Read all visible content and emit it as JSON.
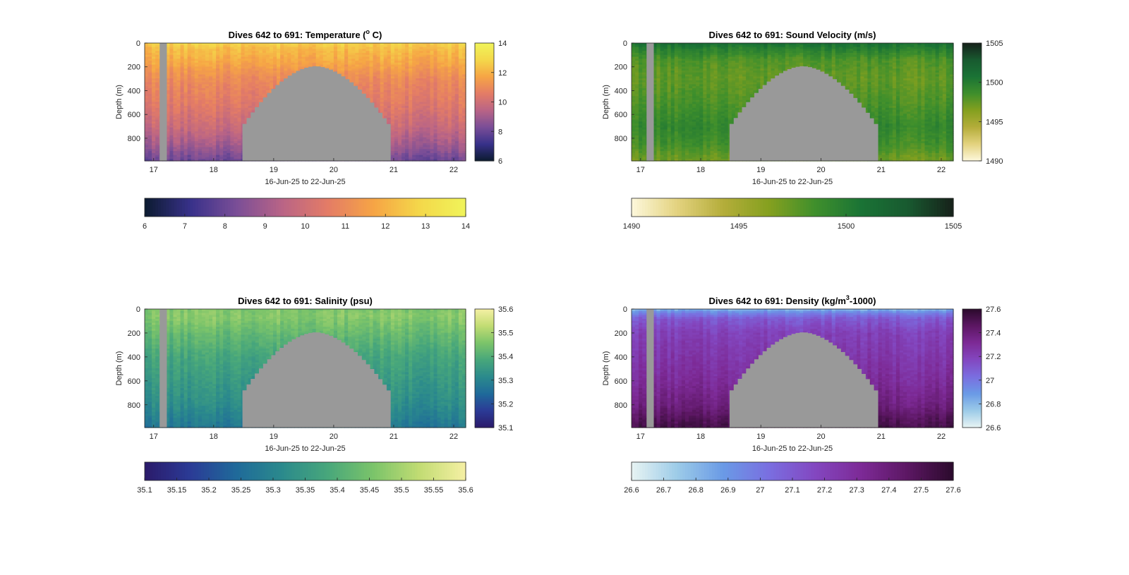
{
  "figure": {
    "title_prefix": "Dives 642 to 691",
    "dives": [
      642,
      691
    ],
    "xlabel": "16-Jun-25 to 22-Jun-25",
    "ylabel": "Depth (m)",
    "background": "#ffffff",
    "mask_color": "#999999"
  },
  "chart_data": [
    {
      "type": "heatmap",
      "id": "temperature",
      "title": "Dives 642 to 691: Temperature (",
      "title_sup": "o",
      "title_tail": " C)",
      "xlabel": "16-Jun-25 to 22-Jun-25",
      "ylabel": "Depth (m)",
      "x_ticks": [
        "17",
        "18",
        "19",
        "20",
        "21",
        "22"
      ],
      "x_tick_values": [
        17,
        18,
        19,
        20,
        21,
        22
      ],
      "xlim": [
        16.85,
        22.2
      ],
      "y_ticks": [
        "0",
        "200",
        "400",
        "600",
        "800"
      ],
      "y_tick_values": [
        0,
        200,
        400,
        600,
        800
      ],
      "ylim": [
        0,
        990
      ],
      "y_reversed": true,
      "clim": [
        6,
        14
      ],
      "colormap": [
        "#0c1b30",
        "#38318a",
        "#7a4e97",
        "#b96486",
        "#e47c66",
        "#f6a545",
        "#f4d84a",
        "#f0f45a"
      ],
      "vertical_colorbar_ticks": [
        "6",
        "8",
        "10",
        "12",
        "14"
      ],
      "vertical_colorbar_values": [
        6,
        8,
        10,
        12,
        14
      ],
      "horizontal_colorbar_ticks": [
        "6",
        "7",
        "8",
        "9",
        "10",
        "11",
        "12",
        "13",
        "14"
      ],
      "horizontal_colorbar_values": [
        6,
        7,
        8,
        9,
        10,
        11,
        12,
        13,
        14
      ],
      "profile": [
        [
          0,
          12.8
        ],
        [
          40,
          12.3
        ],
        [
          150,
          11.8
        ],
        [
          300,
          11.0
        ],
        [
          500,
          10.5
        ],
        [
          700,
          9.8
        ],
        [
          850,
          9.0
        ],
        [
          960,
          8.2
        ],
        [
          990,
          8.0
        ]
      ]
    },
    {
      "type": "heatmap",
      "id": "sound_velocity",
      "title": "Dives 642 to 691: Sound Velocity (m/s)",
      "xlabel": "16-Jun-25 to 22-Jun-25",
      "ylabel": "Depth (m)",
      "x_ticks": [
        "17",
        "18",
        "19",
        "20",
        "21",
        "22"
      ],
      "x_tick_values": [
        17,
        18,
        19,
        20,
        21,
        22
      ],
      "xlim": [
        16.85,
        22.2
      ],
      "y_ticks": [
        "0",
        "200",
        "400",
        "600",
        "800"
      ],
      "y_tick_values": [
        0,
        200,
        400,
        600,
        800
      ],
      "ylim": [
        0,
        990
      ],
      "y_reversed": true,
      "clim": [
        1490,
        1505
      ],
      "colormap": [
        "#fdf8dc",
        "#e3d27e",
        "#b4ad3a",
        "#84a01f",
        "#3f8f2c",
        "#1a7335",
        "#185a30",
        "#17211a"
      ],
      "vertical_colorbar_ticks": [
        "1490",
        "1495",
        "1500",
        "1505"
      ],
      "vertical_colorbar_values": [
        1490,
        1495,
        1500,
        1505
      ],
      "horizontal_colorbar_ticks": [
        "1490",
        "1495",
        "1500",
        "1505"
      ],
      "horizontal_colorbar_values": [
        1490,
        1495,
        1500,
        1505
      ],
      "profile": [
        [
          0,
          1501.2
        ],
        [
          40,
          1500.0
        ],
        [
          150,
          1498.0
        ],
        [
          300,
          1497.5
        ],
        [
          500,
          1498.2
        ],
        [
          700,
          1499.2
        ],
        [
          850,
          1498.5
        ],
        [
          960,
          1497.2
        ],
        [
          990,
          1497.0
        ]
      ]
    },
    {
      "type": "heatmap",
      "id": "salinity",
      "title": "Dives 642 to 691: Salinity (psu)",
      "xlabel": "16-Jun-25 to 22-Jun-25",
      "ylabel": "Depth (m)",
      "x_ticks": [
        "17",
        "18",
        "19",
        "20",
        "21",
        "22"
      ],
      "x_tick_values": [
        17,
        18,
        19,
        20,
        21,
        22
      ],
      "xlim": [
        16.85,
        22.2
      ],
      "y_ticks": [
        "0",
        "200",
        "400",
        "600",
        "800"
      ],
      "y_tick_values": [
        0,
        200,
        400,
        600,
        800
      ],
      "ylim": [
        0,
        990
      ],
      "y_reversed": true,
      "clim": [
        35.1,
        35.6
      ],
      "colormap": [
        "#2b1a6a",
        "#2b3b96",
        "#1f6a9a",
        "#2b8a8c",
        "#48a77b",
        "#7cc46a",
        "#c2dc73",
        "#f5f0a4"
      ],
      "vertical_colorbar_ticks": [
        "35.1",
        "35.2",
        "35.3",
        "35.4",
        "35.5",
        "35.6"
      ],
      "vertical_colorbar_values": [
        35.1,
        35.2,
        35.3,
        35.4,
        35.5,
        35.6
      ],
      "horizontal_colorbar_ticks": [
        "35.1",
        "35.15",
        "35.2",
        "35.25",
        "35.3",
        "35.35",
        "35.4",
        "35.45",
        "35.5",
        "35.55",
        "35.6"
      ],
      "horizontal_colorbar_values": [
        35.1,
        35.15,
        35.2,
        35.25,
        35.3,
        35.35,
        35.4,
        35.45,
        35.5,
        35.55,
        35.6
      ],
      "profile": [
        [
          0,
          35.46
        ],
        [
          60,
          35.47
        ],
        [
          200,
          35.43
        ],
        [
          400,
          35.38
        ],
        [
          600,
          35.35
        ],
        [
          800,
          35.32
        ],
        [
          950,
          35.28
        ],
        [
          990,
          35.27
        ]
      ]
    },
    {
      "type": "heatmap",
      "id": "density",
      "title": "Dives 642 to 691: Density (kg/m",
      "title_sup": "3",
      "title_tail": "-1000)",
      "xlabel": "16-Jun-25 to 22-Jun-25",
      "ylabel": "Depth (m)",
      "x_ticks": [
        "17",
        "18",
        "19",
        "20",
        "21",
        "22"
      ],
      "x_tick_values": [
        17,
        18,
        19,
        20,
        21,
        22
      ],
      "xlim": [
        16.85,
        22.2
      ],
      "y_ticks": [
        "0",
        "200",
        "400",
        "600",
        "800"
      ],
      "y_tick_values": [
        0,
        200,
        400,
        600,
        800
      ],
      "ylim": [
        0,
        990
      ],
      "y_reversed": true,
      "clim": [
        26.6,
        27.6
      ],
      "colormap": [
        "#e8f4f3",
        "#9ccbe8",
        "#6a9ae6",
        "#7a6ee0",
        "#8347c0",
        "#7d2a96",
        "#5c1763",
        "#2b0a2c"
      ],
      "vertical_colorbar_ticks": [
        "26.6",
        "26.8",
        "27",
        "27.2",
        "27.4",
        "27.6"
      ],
      "vertical_colorbar_values": [
        26.6,
        26.8,
        27.0,
        27.2,
        27.4,
        27.6
      ],
      "horizontal_colorbar_ticks": [
        "26.6",
        "26.7",
        "26.8",
        "26.9",
        "27",
        "27.1",
        "27.2",
        "27.3",
        "27.4",
        "27.5",
        "27.6"
      ],
      "horizontal_colorbar_values": [
        26.6,
        26.7,
        26.8,
        26.9,
        27.0,
        27.1,
        27.2,
        27.3,
        27.4,
        27.5,
        27.6
      ],
      "profile": [
        [
          0,
          26.8
        ],
        [
          30,
          26.95
        ],
        [
          80,
          27.1
        ],
        [
          200,
          27.2
        ],
        [
          400,
          27.25
        ],
        [
          600,
          27.3
        ],
        [
          800,
          27.38
        ],
        [
          950,
          27.5
        ],
        [
          990,
          27.52
        ]
      ]
    }
  ]
}
